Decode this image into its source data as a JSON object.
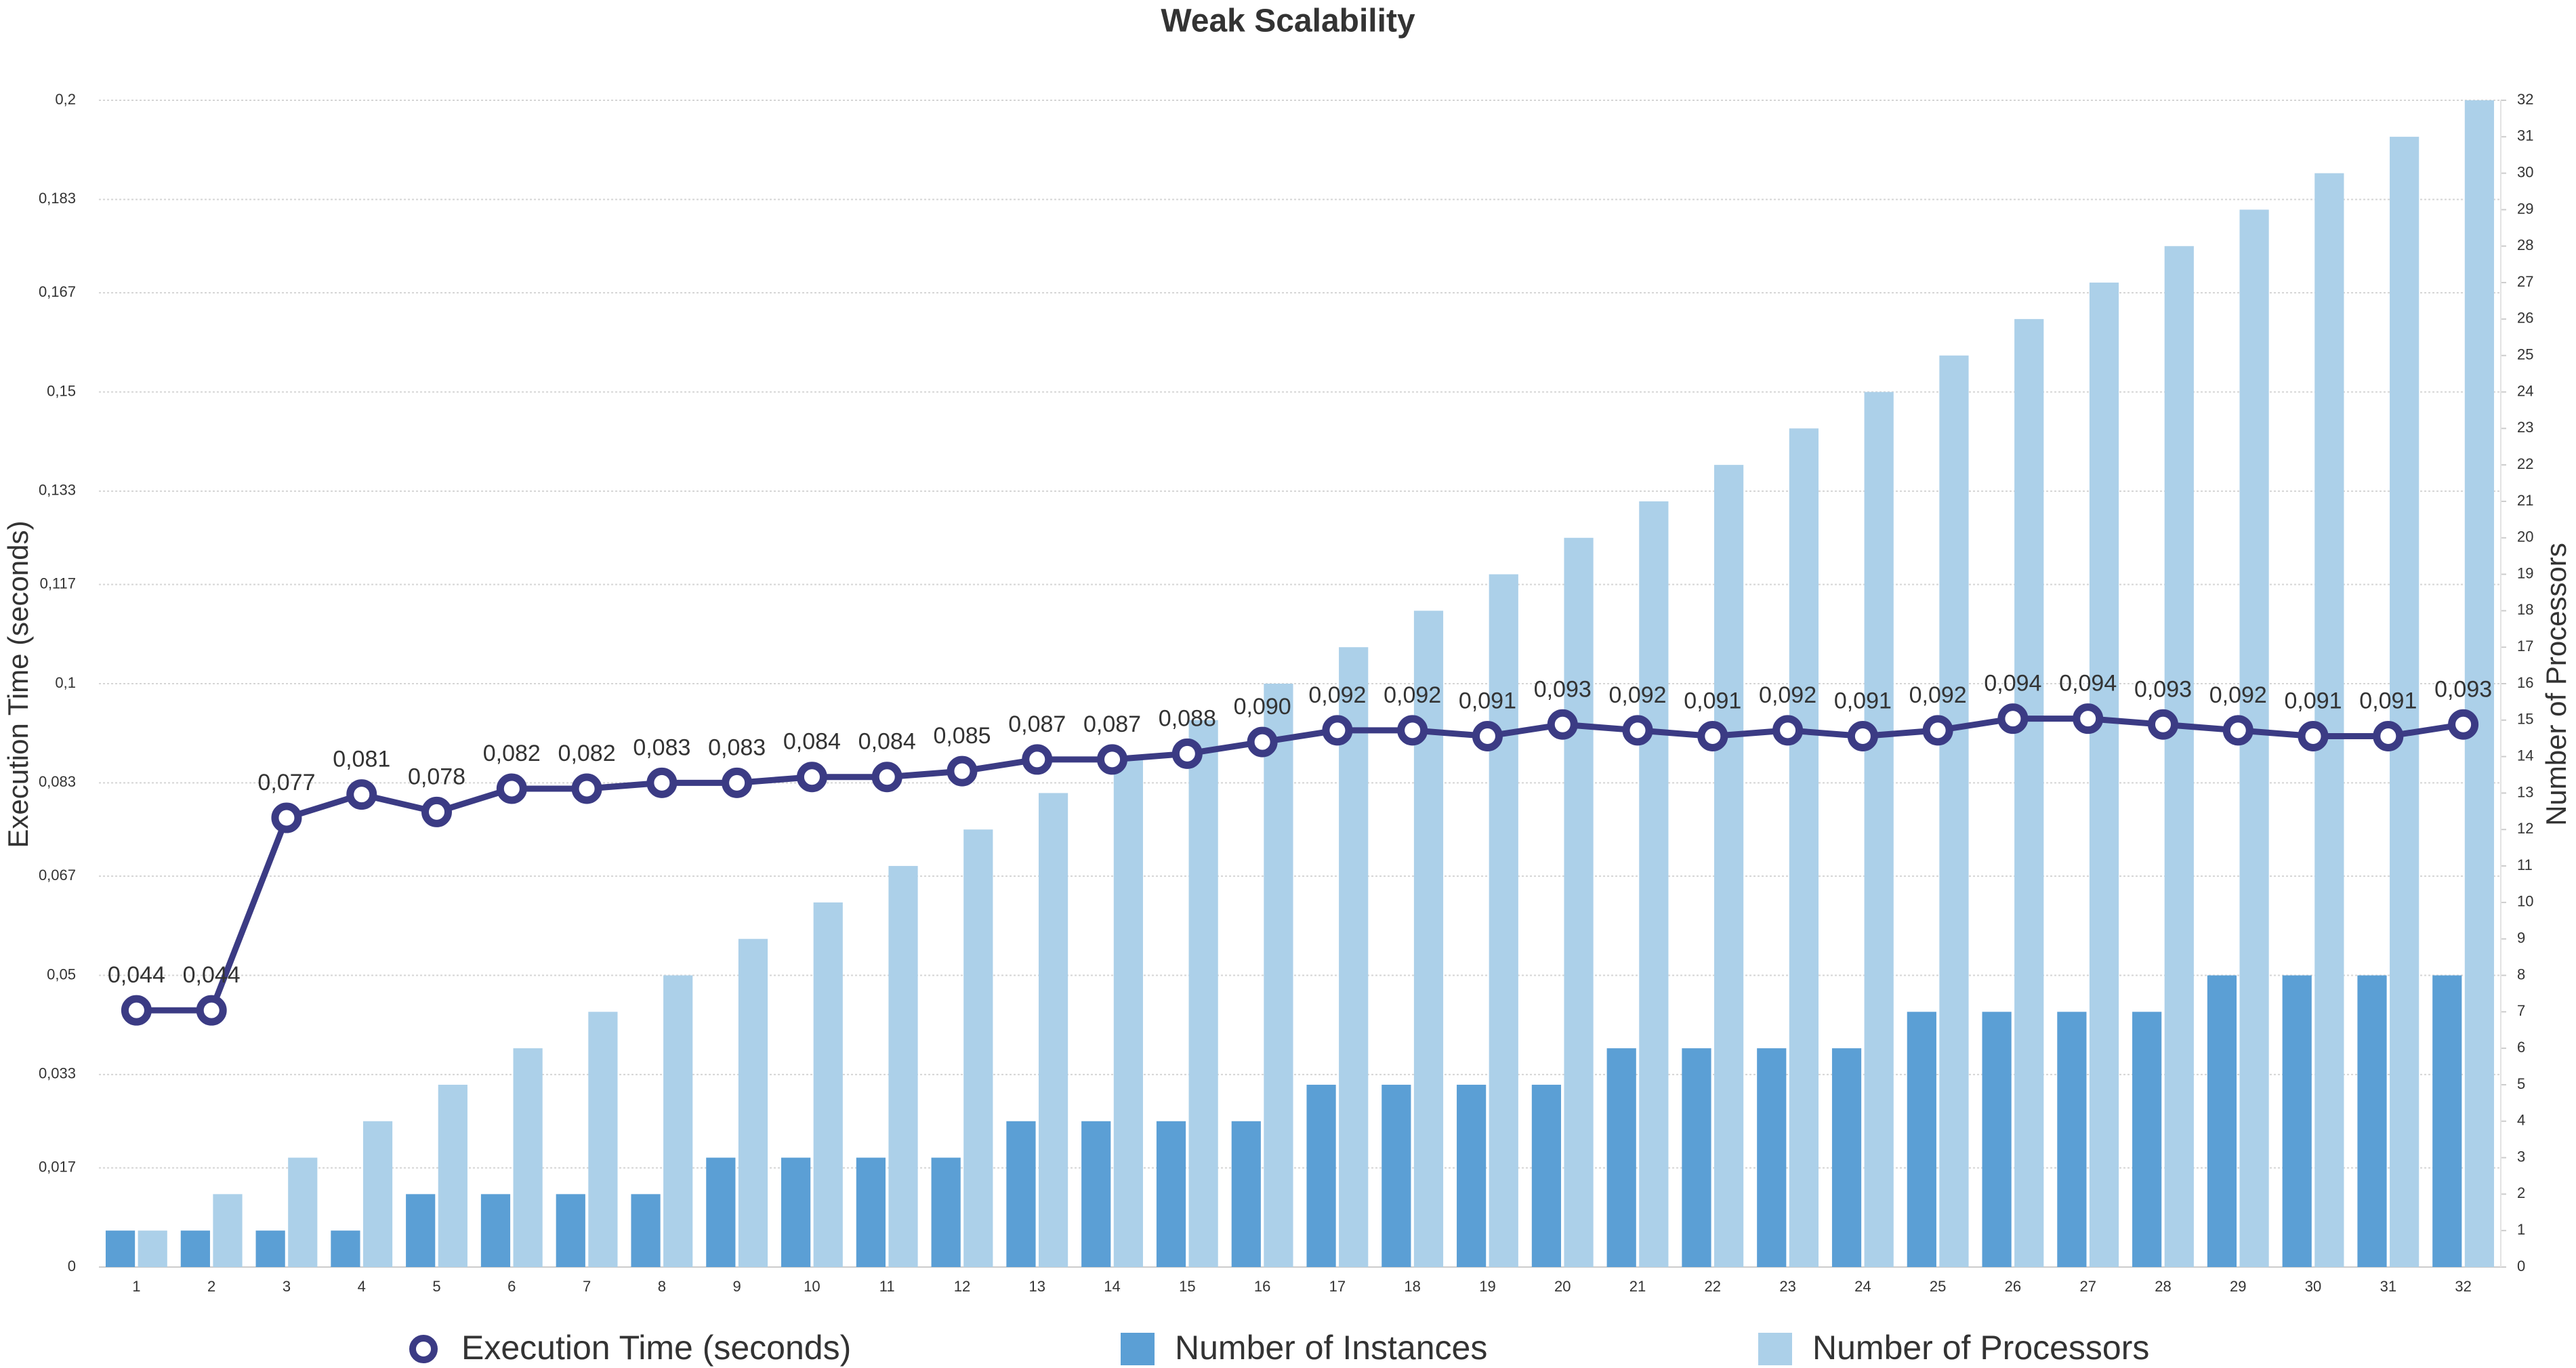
{
  "chart_data": {
    "type": "bar-line",
    "title": "Weak Scalability",
    "ylabel": "Execution Time (seconds)",
    "y2label": "Number of Processors",
    "categories": [
      "1",
      "2",
      "3",
      "4",
      "5",
      "6",
      "7",
      "8",
      "9",
      "10",
      "11",
      "12",
      "13",
      "14",
      "15",
      "16",
      "17",
      "18",
      "19",
      "20",
      "21",
      "22",
      "23",
      "24",
      "25",
      "26",
      "27",
      "28",
      "29",
      "30",
      "31",
      "32"
    ],
    "ylim": [
      0,
      0.2
    ],
    "yticks": [
      0,
      {
        "value": 0.017,
        "label": "0,017"
      },
      {
        "value": 0.033,
        "label": "0,033"
      },
      {
        "value": 0.05,
        "label": "0,05"
      },
      {
        "value": 0.067,
        "label": "0,067"
      },
      {
        "value": 0.083,
        "label": "0,083"
      },
      {
        "value": 0.1,
        "label": "0,1"
      },
      {
        "value": 0.117,
        "label": "0,117"
      },
      {
        "value": 0.133,
        "label": "0,133"
      },
      {
        "value": 0.15,
        "label": "0,15"
      },
      {
        "value": 0.167,
        "label": "0,167"
      },
      {
        "value": 0.183,
        "label": "0,183"
      },
      {
        "value": 0.2,
        "label": "0,2"
      }
    ],
    "y2lim": [
      0,
      32
    ],
    "y2ticks": [
      0,
      1,
      2,
      3,
      4,
      5,
      6,
      7,
      8,
      9,
      10,
      11,
      12,
      13,
      14,
      15,
      16,
      17,
      18,
      19,
      20,
      21,
      22,
      23,
      24,
      25,
      26,
      27,
      28,
      29,
      30,
      31,
      32
    ],
    "grid": true,
    "legend": "bottom",
    "series": [
      {
        "name": "Execution Time (seconds)",
        "type": "line",
        "axis": "y",
        "color": "#3b3b84",
        "values": [
          0.044,
          0.044,
          0.077,
          0.081,
          0.078,
          0.082,
          0.082,
          0.083,
          0.083,
          0.084,
          0.084,
          0.085,
          0.087,
          0.087,
          0.088,
          0.09,
          0.092,
          0.092,
          0.091,
          0.093,
          0.092,
          0.091,
          0.092,
          0.091,
          0.092,
          0.094,
          0.094,
          0.093,
          0.092,
          0.091,
          0.091,
          0.093
        ],
        "value_labels": [
          "0,044",
          "0,044",
          "0,077",
          "0,081",
          "0,078",
          "0,082",
          "0,082",
          "0,083",
          "0,083",
          "0,084",
          "0,084",
          "0,085",
          "0,087",
          "0,087",
          "0,088",
          "0,090",
          "0,092",
          "0,092",
          "0,091",
          "0,093",
          "0,092",
          "0,091",
          "0,092",
          "0,091",
          "0,092",
          "0,094",
          "0,094",
          "0,093",
          "0,092",
          "0,091",
          "0,091",
          "0,093"
        ]
      },
      {
        "name": "Number of Instances",
        "type": "bar",
        "axis": "y2",
        "color": "#5b9fd5",
        "values": [
          1,
          1,
          1,
          1,
          2,
          2,
          2,
          2,
          3,
          3,
          3,
          3,
          4,
          4,
          4,
          4,
          5,
          5,
          5,
          5,
          6,
          6,
          6,
          6,
          7,
          7,
          7,
          7,
          8,
          8,
          8,
          8
        ]
      },
      {
        "name": "Number of Processors",
        "type": "bar",
        "axis": "y2",
        "color": "#acd0e9",
        "values": [
          1,
          2,
          3,
          4,
          5,
          6,
          7,
          8,
          9,
          10,
          11,
          12,
          13,
          14,
          15,
          16,
          17,
          18,
          19,
          20,
          21,
          22,
          23,
          24,
          25,
          26,
          27,
          28,
          29,
          30,
          31,
          32
        ]
      }
    ]
  }
}
